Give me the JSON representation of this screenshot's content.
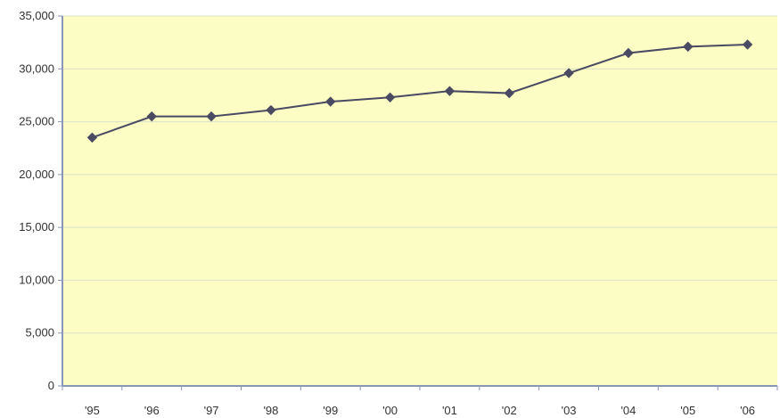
{
  "chart_data": {
    "type": "line",
    "title": "",
    "xlabel": "",
    "ylabel": "",
    "categories": [
      "'95",
      "'96",
      "'97",
      "'98",
      "'99",
      "'00",
      "'01",
      "'02",
      "'03",
      "'04",
      "'05",
      "'06"
    ],
    "series": [
      {
        "values": [
          23500,
          25500,
          25500,
          26100,
          26900,
          27300,
          27900,
          27700,
          29600,
          31500,
          32100,
          32300
        ]
      }
    ],
    "ylim": [
      0,
      35000
    ],
    "yticks": [
      0,
      5000,
      10000,
      15000,
      20000,
      25000,
      30000,
      35000
    ],
    "ytick_labels": [
      "0",
      "5,000",
      "10,000",
      "15,000",
      "20,000",
      "25,000",
      "30,000",
      "35,000"
    ],
    "grid": true,
    "legend": "none",
    "colors": {
      "plot_background": "#fbfdc4",
      "grid": "#d9e2c8",
      "axis": "#8a96b8",
      "line": "#4a4a62",
      "marker": "#4a4a62"
    }
  }
}
